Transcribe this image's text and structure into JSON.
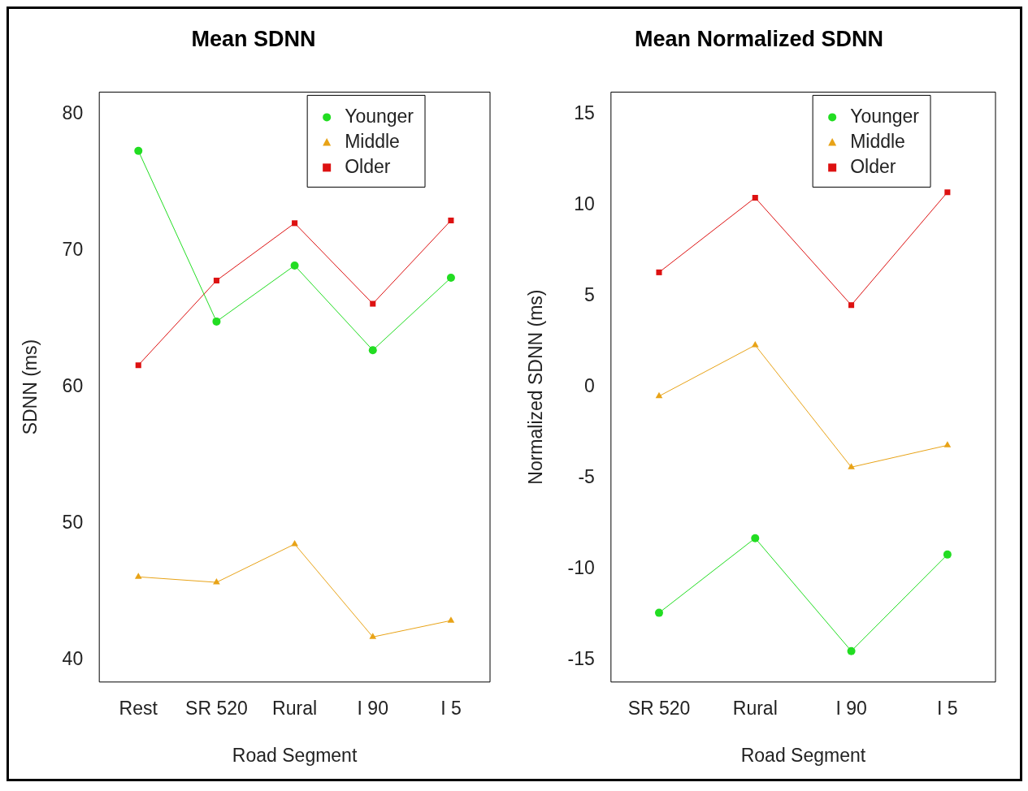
{
  "chart_data": [
    {
      "type": "line",
      "title": "Mean SDNN",
      "xlabel": "Road Segment",
      "ylabel": "SDNN (ms)",
      "categories": [
        "Rest",
        "SR 520",
        "Rural",
        "I 90",
        "I 5"
      ],
      "series": [
        {
          "name": "Younger",
          "color": "#22dd22",
          "marker": "circle",
          "values": [
            77.3,
            64.8,
            68.9,
            62.7,
            68.0
          ]
        },
        {
          "name": "Middle",
          "color": "#e8a317",
          "marker": "triangle",
          "values": [
            46.1,
            45.7,
            48.5,
            41.7,
            42.9
          ]
        },
        {
          "name": "Older",
          "color": "#dd1111",
          "marker": "square",
          "values": [
            61.6,
            67.8,
            72.0,
            66.1,
            72.2
          ]
        }
      ],
      "ylim": [
        38.4,
        81.6
      ],
      "yticks": [
        40,
        50,
        60,
        70,
        80
      ],
      "grid": false,
      "legend": "top right"
    },
    {
      "type": "line",
      "title": "Mean Normalized SDNN",
      "xlabel": "Road Segment",
      "ylabel": "Normalized SDNN (ms)",
      "categories": [
        "SR 520",
        "Rural",
        "I 90",
        "I 5"
      ],
      "series": [
        {
          "name": "Younger",
          "color": "#22dd22",
          "marker": "circle",
          "values": [
            -12.4,
            -8.3,
            -14.5,
            -9.2
          ]
        },
        {
          "name": "Middle",
          "color": "#e8a317",
          "marker": "triangle",
          "values": [
            -0.5,
            2.3,
            -4.4,
            -3.2
          ]
        },
        {
          "name": "Older",
          "color": "#dd1111",
          "marker": "square",
          "values": [
            6.3,
            10.4,
            4.5,
            10.7
          ]
        }
      ],
      "ylim": [
        -16.2,
        16.2
      ],
      "yticks": [
        -15,
        -10,
        -5,
        0,
        5,
        10,
        15
      ],
      "grid": false,
      "legend": "top right"
    }
  ]
}
